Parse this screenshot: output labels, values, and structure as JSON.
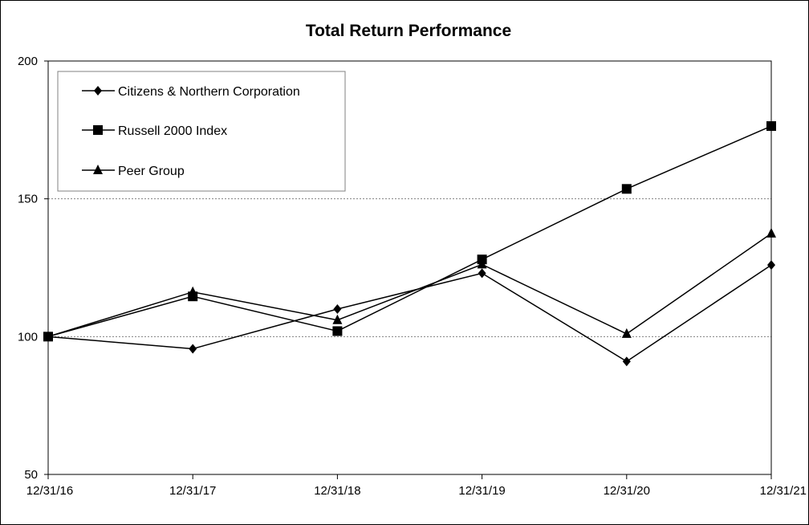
{
  "chart_data": {
    "type": "line",
    "title": "Total Return Performance",
    "xlabel": "",
    "ylabel": "",
    "categories": [
      "12/31/16",
      "12/31/17",
      "12/31/18",
      "12/31/19",
      "12/31/20",
      "12/31/21"
    ],
    "ylim": [
      50,
      200
    ],
    "yticks": [
      50,
      100,
      150,
      200
    ],
    "grid": "horizontal dotted at 100 and 150",
    "legend_position": "top-left",
    "series": [
      {
        "name": "Citizens & Northern Corporation",
        "marker": "diamond",
        "values": [
          100,
          95.6,
          110,
          123,
          91,
          126
        ]
      },
      {
        "name": "Russell 2000 Index",
        "marker": "square",
        "values": [
          100,
          114.6,
          102,
          128,
          153.6,
          176.4
        ]
      },
      {
        "name": "Peer Group",
        "marker": "triangle",
        "values": [
          100,
          116.2,
          106,
          126.2,
          101,
          137.4
        ]
      }
    ],
    "colors": {
      "line": "#000000",
      "grid": "#808080",
      "background": "#ffffff"
    }
  }
}
